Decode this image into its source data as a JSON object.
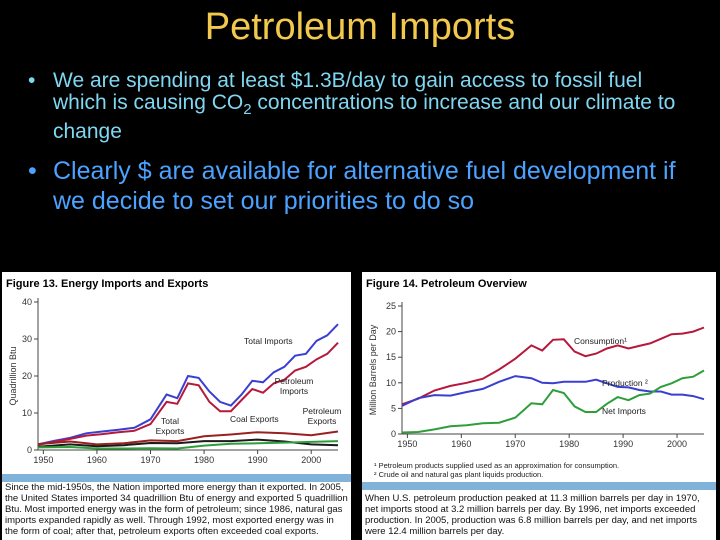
{
  "slide": {
    "title": "Petroleum Imports",
    "bullet_symbol": "•",
    "bullets": [
      {
        "before": "We are spending at least $1.3B/day to gain access to fossil fuel which is causing CO",
        "sub": "2",
        "after": " concentrations to increase and our climate to change"
      },
      {
        "before": "Clearly $ are available for alternative fuel development if we decide to set our priorities to do so",
        "sub": "",
        "after": ""
      }
    ]
  },
  "figure13": {
    "title": "Figure 13.  Energy Imports and Exports",
    "caption": "Since the mid-1950s, the Nation imported more energy than it exported. In 2005, the United States imported 34 quadrillion Btu of energy and exported 5 quadrillion Btu. Most imported energy was in the form of petroleum; since 1986, natural gas imports expanded rapidly as well. Through 1992, most exported energy was in the form of coal; after that, petroleum exports often exceeded coal exports.",
    "chart_data": {
      "type": "line",
      "ylabel": "Quadrillion Btu",
      "xlim": [
        1949,
        2005
      ],
      "ylim": [
        0,
        40
      ],
      "yticks": [
        0,
        10,
        20,
        30,
        40
      ],
      "xticks": [
        1950,
        1960,
        1970,
        1980,
        1990,
        2000
      ],
      "colors": {
        "Total Imports": "#3a3fd1",
        "Petroleum Imports": "#b5193c",
        "Total Exports": "#9a2020",
        "Coal Exports": "#1a1a1a",
        "Petroleum Exports": "#2e9e3a"
      },
      "series": [
        {
          "name": "Total Imports",
          "x": [
            1949,
            1952,
            1955,
            1958,
            1961,
            1964,
            1967,
            1970,
            1973,
            1975,
            1977,
            1979,
            1981,
            1983,
            1985,
            1987,
            1989,
            1991,
            1993,
            1995,
            1997,
            1999,
            2001,
            2003,
            2005
          ],
          "values": [
            1.5,
            2.5,
            3.3,
            4.5,
            5.0,
            5.5,
            6.0,
            8.3,
            15.0,
            14.0,
            20.0,
            19.5,
            15.8,
            13.0,
            12.0,
            15.0,
            18.7,
            18.3,
            21.0,
            22.5,
            25.5,
            26.0,
            29.5,
            31.0,
            34.0
          ]
        },
        {
          "name": "Petroleum Imports",
          "x": [
            1949,
            1952,
            1955,
            1958,
            1961,
            1964,
            1967,
            1970,
            1973,
            1975,
            1977,
            1979,
            1981,
            1983,
            1985,
            1987,
            1989,
            1991,
            1993,
            1995,
            1997,
            1999,
            2001,
            2003,
            2005
          ],
          "values": [
            1.4,
            2.2,
            3.0,
            3.9,
            4.3,
            4.8,
            5.2,
            7.0,
            13.0,
            12.5,
            18.0,
            17.5,
            13.0,
            10.5,
            10.5,
            13.5,
            16.5,
            15.5,
            18.0,
            19.0,
            21.5,
            22.5,
            24.5,
            26.0,
            29.0
          ]
        },
        {
          "name": "Total Exports",
          "x": [
            1949,
            1955,
            1960,
            1965,
            1970,
            1975,
            1980,
            1985,
            1990,
            1995,
            2000,
            2005
          ],
          "values": [
            1.6,
            2.3,
            1.5,
            1.8,
            2.6,
            2.4,
            3.7,
            4.2,
            4.8,
            4.5,
            4.0,
            5.0
          ]
        },
        {
          "name": "Coal Exports",
          "x": [
            1949,
            1955,
            1960,
            1965,
            1970,
            1975,
            1980,
            1985,
            1990,
            1995,
            2000,
            2005
          ],
          "values": [
            0.9,
            1.5,
            1.0,
            1.3,
            1.9,
            1.8,
            2.4,
            2.4,
            2.8,
            2.3,
            1.5,
            1.3
          ]
        },
        {
          "name": "Petroleum Exports",
          "x": [
            1949,
            1955,
            1960,
            1965,
            1970,
            1975,
            1980,
            1985,
            1990,
            1995,
            2000,
            2005
          ],
          "values": [
            0.7,
            0.8,
            0.4,
            0.4,
            0.5,
            0.4,
            1.2,
            1.7,
            1.8,
            2.0,
            2.2,
            2.4
          ]
        }
      ],
      "labels": [
        "Total Imports",
        "Petroleum Imports",
        "Total Exports",
        "Coal Exports",
        "Petroleum Exports"
      ]
    }
  },
  "figure14": {
    "title": "Figure 14.  Petroleum Overview",
    "notes": [
      "¹ Petroleum products supplied used as an approximation for consumption.",
      "² Crude oil and natural gas plant liquids production."
    ],
    "caption": "When U.S. petroleum production peaked at 11.3 million barrels per day in 1970, net imports stood at 3.2 million barrels per day. By 1996, net imports exceeded production. In 2005, production was 6.8 million barrels per day, and net imports were 12.4 million barrels per day.",
    "chart_data": {
      "type": "line",
      "ylabel": "Million Barrels per Day",
      "xlim": [
        1949,
        2005
      ],
      "ylim": [
        0,
        25
      ],
      "yticks": [
        0,
        5,
        10,
        15,
        20,
        25
      ],
      "xticks": [
        1950,
        1960,
        1970,
        1980,
        1990,
        2000
      ],
      "colors": {
        "Consumption": "#b5193c",
        "Production": "#3a3fd1",
        "Net Imports": "#2e9e3a"
      },
      "series": [
        {
          "name": "Consumption",
          "x": [
            1949,
            1952,
            1955,
            1958,
            1961,
            1964,
            1967,
            1970,
            1973,
            1975,
            1977,
            1979,
            1981,
            1983,
            1985,
            1987,
            1989,
            1991,
            1993,
            1995,
            1997,
            1999,
            2001,
            2003,
            2005
          ],
          "values": [
            5.8,
            6.9,
            8.5,
            9.4,
            10.0,
            10.8,
            12.6,
            14.7,
            17.3,
            16.3,
            18.4,
            18.5,
            16.1,
            15.2,
            15.7,
            16.7,
            17.3,
            16.7,
            17.2,
            17.7,
            18.6,
            19.5,
            19.6,
            20.0,
            20.8
          ]
        },
        {
          "name": "Production",
          "x": [
            1949,
            1952,
            1955,
            1958,
            1961,
            1964,
            1967,
            1970,
            1973,
            1975,
            1977,
            1979,
            1981,
            1983,
            1985,
            1987,
            1989,
            1991,
            1993,
            1995,
            1997,
            1999,
            2001,
            2003,
            2005
          ],
          "values": [
            5.5,
            7.0,
            7.6,
            7.5,
            8.2,
            8.8,
            10.2,
            11.3,
            10.9,
            10.0,
            9.9,
            10.2,
            10.2,
            10.2,
            10.6,
            9.9,
            9.2,
            9.1,
            8.6,
            8.3,
            8.3,
            7.7,
            7.7,
            7.4,
            6.8
          ]
        },
        {
          "name": "Net Imports",
          "x": [
            1949,
            1952,
            1955,
            1958,
            1961,
            1964,
            1967,
            1970,
            1973,
            1975,
            1977,
            1979,
            1981,
            1983,
            1985,
            1987,
            1989,
            1991,
            1993,
            1995,
            1997,
            1999,
            2001,
            2003,
            2005
          ],
          "values": [
            0.3,
            0.4,
            0.9,
            1.5,
            1.7,
            2.1,
            2.2,
            3.2,
            6.0,
            5.8,
            8.6,
            8.0,
            5.4,
            4.3,
            4.3,
            5.9,
            7.2,
            6.6,
            7.6,
            7.9,
            9.2,
            9.9,
            10.9,
            11.2,
            12.4
          ]
        }
      ],
      "labels": [
        "Consumption¹",
        "Production ²",
        "Net Imports"
      ]
    }
  }
}
